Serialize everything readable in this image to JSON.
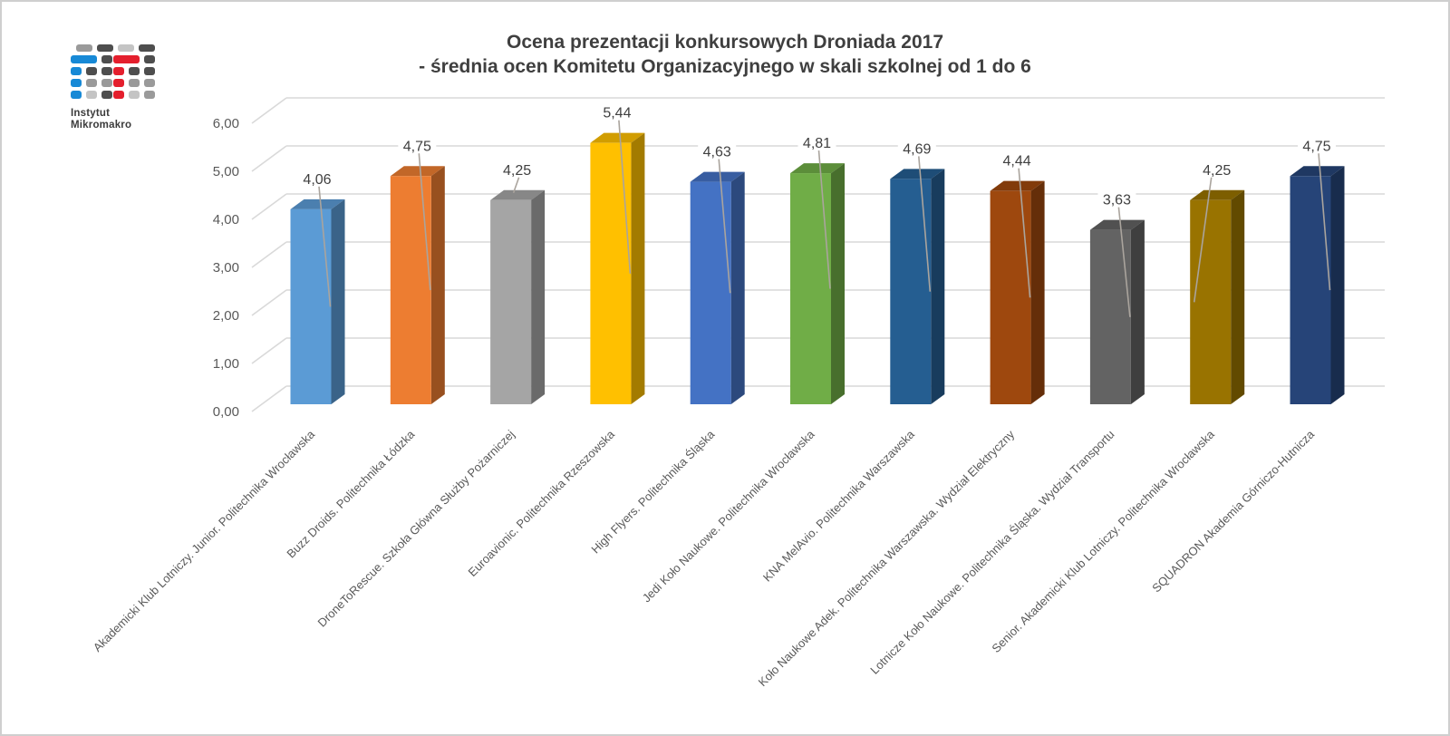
{
  "logo": {
    "line1": "Instytut",
    "line2": "Mikromakro",
    "grid": {
      "colors": {
        "B": "#1789D6",
        "R": "#E41F2D",
        "D": "#4E4E4E",
        "G": "#9A9A9A",
        "L": "#C4C4C4"
      },
      "cells": [
        [
          6,
          0,
          18,
          8,
          "G"
        ],
        [
          29,
          0,
          18,
          8,
          "D"
        ],
        [
          52,
          0,
          18,
          8,
          "L"
        ],
        [
          75,
          0,
          18,
          8,
          "D"
        ],
        [
          0,
          12,
          29,
          9,
          "B"
        ],
        [
          34,
          12,
          12,
          9,
          "D"
        ],
        [
          47,
          12,
          29,
          9,
          "R"
        ],
        [
          81,
          12,
          12,
          9,
          "D"
        ],
        [
          0,
          25,
          12,
          9,
          "B"
        ],
        [
          17,
          25,
          12,
          9,
          "D"
        ],
        [
          34,
          25,
          12,
          9,
          "D"
        ],
        [
          47,
          25,
          12,
          9,
          "R"
        ],
        [
          64,
          25,
          12,
          9,
          "D"
        ],
        [
          81,
          25,
          12,
          9,
          "D"
        ],
        [
          0,
          38,
          12,
          9,
          "B"
        ],
        [
          17,
          38,
          12,
          9,
          "G"
        ],
        [
          34,
          38,
          12,
          9,
          "G"
        ],
        [
          47,
          38,
          12,
          9,
          "R"
        ],
        [
          64,
          38,
          12,
          9,
          "G"
        ],
        [
          81,
          38,
          12,
          9,
          "G"
        ],
        [
          0,
          51,
          12,
          9,
          "B"
        ],
        [
          17,
          51,
          12,
          9,
          "L"
        ],
        [
          34,
          51,
          12,
          9,
          "D"
        ],
        [
          47,
          51,
          12,
          9,
          "R"
        ],
        [
          64,
          51,
          12,
          9,
          "L"
        ],
        [
          81,
          51,
          12,
          9,
          "G"
        ]
      ]
    }
  },
  "title": {
    "line1": "Ocena prezentacji konkursowych Droniada 2017",
    "line2": "- średnia ocen Komitetu Organizacyjnego w skali szkolnej od 1 do 6"
  },
  "chart_data": {
    "type": "bar",
    "variant": "3d-column",
    "title": "Ocena prezentacji konkursowych Droniada 2017 - średnia ocen Komitetu Organizacyjnego w skali szkolnej od 1 do 6",
    "categories": [
      "Akademicki Klub Lotniczy. Junior. Politechnika Wrocławska",
      "Buzz Droids. Politechnika Łódzka",
      "DroneToRescue. Szkoła Główna Służby Pożarniczej",
      "Euroavionic. Politechnika Rzeszowska",
      "High Flyers. Politechnika Śląska",
      "Jedi Koło Naukowe. Politechnika Wrocławska",
      "KNA MelAvio. Politechnika Warszawska",
      "Koło Naukowe Adek. Politechnika Warszawska. Wydział Elektryczny",
      "Lotnicze Koło Naukowe. Politechnika Śląska. Wydział Transportu",
      "Senior. Akademicki Klub Lotniczy. Politechnika Wrocławska",
      "SQUADRON Akademia Górniczo-Hutnicza"
    ],
    "values": [
      4.06,
      4.75,
      4.25,
      5.44,
      4.63,
      4.81,
      4.69,
      4.44,
      3.63,
      4.25,
      4.75
    ],
    "data_labels": [
      "4,06",
      "4,75",
      "4,25",
      "5,44",
      "4,63",
      "4,81",
      "4,69",
      "4,44",
      "3,63",
      "4,25",
      "4,75"
    ],
    "colors": [
      "#5B9BD5",
      "#ED7D31",
      "#A5A5A5",
      "#FFC000",
      "#4472C4",
      "#70AD47",
      "#255E91",
      "#9E480E",
      "#636363",
      "#997300",
      "#264478"
    ],
    "xlabel": "",
    "ylabel": "",
    "ylim": [
      0,
      6
    ],
    "ytick_step": 1,
    "ytick_labels": [
      "0,00",
      "1,00",
      "2,00",
      "3,00",
      "4,00",
      "5,00",
      "6,00"
    ],
    "decimal_separator": ",",
    "grid": true,
    "legend": "none",
    "label_leader_targets": [
      "right",
      "right",
      "top",
      "right",
      "right",
      "right",
      "right",
      "right",
      "right",
      "left",
      "right"
    ]
  }
}
